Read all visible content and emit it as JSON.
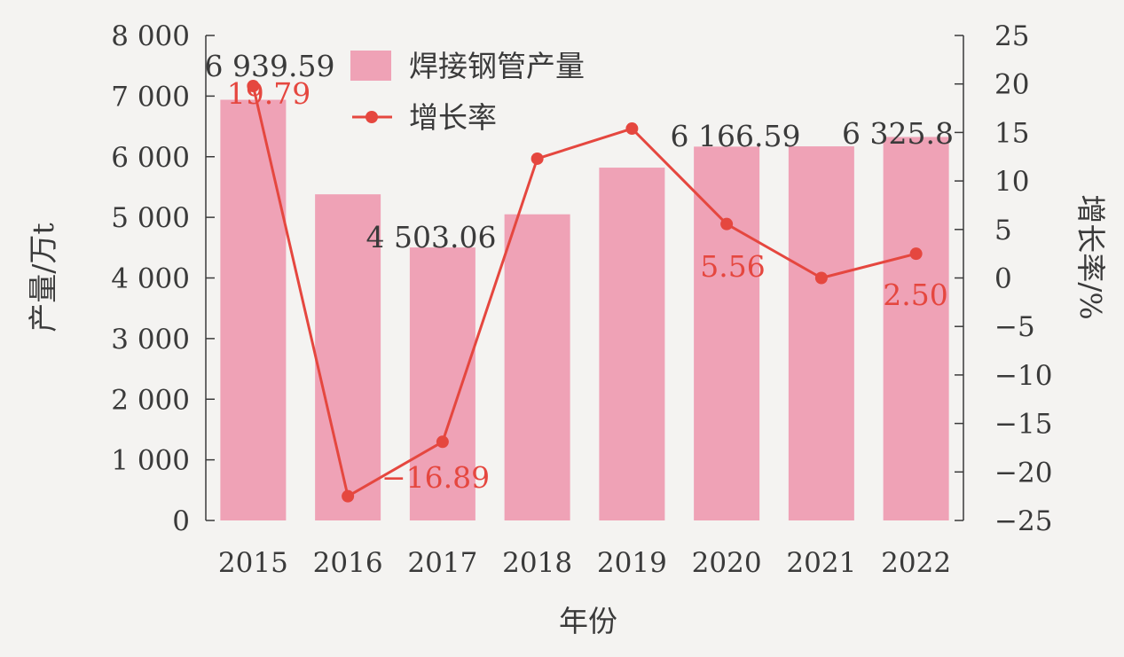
{
  "chart_data": {
    "type": "bar",
    "categories": [
      "2015",
      "2016",
      "2017",
      "2018",
      "2019",
      "2020",
      "2021",
      "2022"
    ],
    "xlabel": "年份",
    "ylabel": "产量/万t",
    "y2label": "增长率/%",
    "ylim": [
      0,
      8000
    ],
    "y2lim": [
      -25,
      25
    ],
    "yticks": [
      "0",
      "1 000",
      "2 000",
      "3 000",
      "4 000",
      "5 000",
      "6 000",
      "7 000",
      "8 000"
    ],
    "y2ticks": [
      "−25",
      "−20",
      "−15",
      "−10",
      "−5",
      "0",
      "5",
      "10",
      "15",
      "20",
      "25"
    ],
    "series": [
      {
        "name": "焊接钢管产量",
        "kind": "bar",
        "color": "#efa2b6",
        "values": [
          6939.59,
          5380,
          4503.06,
          5050,
          5820,
          6166.59,
          6171,
          6325.8
        ]
      },
      {
        "name": "增长率",
        "kind": "line",
        "axis": "right",
        "color": "#e5473f",
        "values": [
          19.79,
          -22.5,
          -16.89,
          12.3,
          15.4,
          5.56,
          0.0,
          2.5
        ]
      }
    ],
    "bar_labels": [
      "6 939.59",
      "",
      "4 503.06",
      "",
      "",
      "6 166.59",
      "",
      "6 325.8"
    ],
    "line_labels": [
      "19.79",
      "",
      "−16.89",
      "",
      "",
      "5.56",
      "",
      "2.50"
    ],
    "legend_position": "top-center",
    "grid": false
  }
}
